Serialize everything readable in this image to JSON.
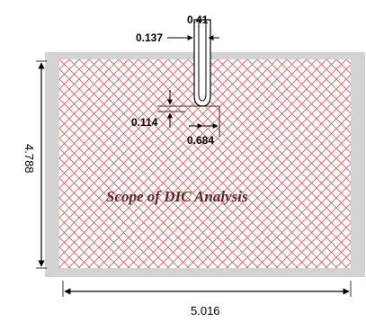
{
  "diagram": {
    "region_label": "Scope of DIC Analysis",
    "dimensions": {
      "slit_width": "0.41",
      "slit_offset": "0.137",
      "notch_radius": "0.114",
      "notch_depth": "0.684",
      "specimen_height": "4.788",
      "specimen_width": "5.016"
    },
    "colors": {
      "specimen_gray": "#d3d3d3",
      "mesh_red": "#e06060",
      "label_dark": "#5a2a2a"
    }
  }
}
